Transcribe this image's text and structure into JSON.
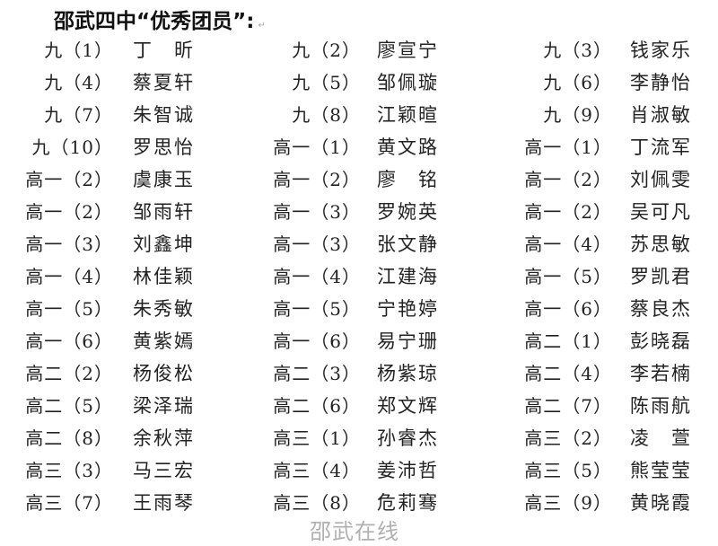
{
  "title": "邵武四中“优秀团员”:",
  "watermark": "邵武在线",
  "rows": [
    [
      {
        "cls": "九（1）",
        "name": "丁　昕"
      },
      {
        "cls": "九（2）",
        "name": "廖宣宁"
      },
      {
        "cls": "九（3）",
        "name": "钱家乐"
      }
    ],
    [
      {
        "cls": "九（4）",
        "name": "蔡夏轩"
      },
      {
        "cls": "九（5）",
        "name": "邹佩璇"
      },
      {
        "cls": "九（6）",
        "name": "李静怡"
      }
    ],
    [
      {
        "cls": "九（7）",
        "name": "朱智诚"
      },
      {
        "cls": "九（8）",
        "name": "江颖暄"
      },
      {
        "cls": "九（9）",
        "name": "肖淑敏"
      }
    ],
    [
      {
        "cls": "九（10）",
        "name": "罗思怡"
      },
      {
        "cls": "高一（1）",
        "name": "黄文路"
      },
      {
        "cls": "高一（1）",
        "name": "丁流军"
      }
    ],
    [
      {
        "cls": "高一（2）",
        "name": "虞康玉"
      },
      {
        "cls": "高一（2）",
        "name": "廖　铭"
      },
      {
        "cls": "高一（2）",
        "name": "刘佩雯"
      }
    ],
    [
      {
        "cls": "高一（2）",
        "name": "邹雨轩"
      },
      {
        "cls": "高一（3）",
        "name": "罗婉英"
      },
      {
        "cls": "高一（2）",
        "name": "吴可凡"
      }
    ],
    [
      {
        "cls": "高一（3）",
        "name": "刘鑫坤"
      },
      {
        "cls": "高一（3）",
        "name": "张文静"
      },
      {
        "cls": "高一（4）",
        "name": "苏思敏"
      }
    ],
    [
      {
        "cls": "高一（4）",
        "name": "林佳颖"
      },
      {
        "cls": "高一（4）",
        "name": "江建海"
      },
      {
        "cls": "高一（5）",
        "name": "罗凯君"
      }
    ],
    [
      {
        "cls": "高一（5）",
        "name": "朱秀敏"
      },
      {
        "cls": "高一（5）",
        "name": "宁艳婷"
      },
      {
        "cls": "高一（6）",
        "name": "蔡良杰"
      }
    ],
    [
      {
        "cls": "高一（6）",
        "name": "黄紫嫣"
      },
      {
        "cls": "高一（6）",
        "name": "易宁珊"
      },
      {
        "cls": "高二（1）",
        "name": "彭晓磊"
      }
    ],
    [
      {
        "cls": "高二（2）",
        "name": "杨俊松"
      },
      {
        "cls": "高二（3）",
        "name": "杨紫琼"
      },
      {
        "cls": "高二（4）",
        "name": "李若楠"
      }
    ],
    [
      {
        "cls": "高二（5）",
        "name": "梁泽瑞"
      },
      {
        "cls": "高二（6）",
        "name": "郑文辉"
      },
      {
        "cls": "高二（7）",
        "name": "陈雨航"
      }
    ],
    [
      {
        "cls": "高二（8）",
        "name": "余秋萍"
      },
      {
        "cls": "高三（1）",
        "name": "孙睿杰"
      },
      {
        "cls": "高三（2）",
        "name": "凌　萱"
      }
    ],
    [
      {
        "cls": "高三（3）",
        "name": "马三宏"
      },
      {
        "cls": "高三（4）",
        "name": "姜沛哲"
      },
      {
        "cls": "高三（5）",
        "name": "熊莹莹"
      }
    ],
    [
      {
        "cls": "高三（7）",
        "name": "王雨琴"
      },
      {
        "cls": "高三（8）",
        "name": "危莉骞"
      },
      {
        "cls": "高三（9）",
        "name": "黄晓霞"
      }
    ]
  ]
}
